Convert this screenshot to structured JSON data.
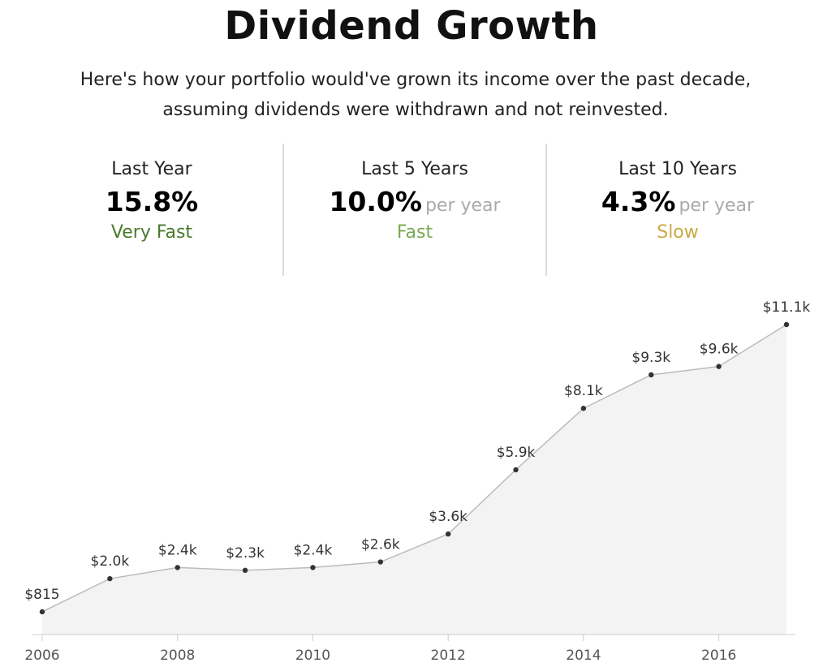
{
  "header": {
    "title": "Dividend Growth",
    "subtitle_line1": "Here's how your portfolio would've grown its income over the past decade,",
    "subtitle_line2": "assuming dividends were withdrawn and not reinvested."
  },
  "stats": [
    {
      "label": "Last Year",
      "value": "15.8%",
      "unit": "",
      "rating": "Very Fast",
      "rating_color": "#4a7a2c"
    },
    {
      "label": "Last 5 Years",
      "value": "10.0%",
      "unit": "per year",
      "rating": "Fast",
      "rating_color": "#7aa954"
    },
    {
      "label": "Last 10 Years",
      "value": "4.3%",
      "unit": "per year",
      "rating": "Slow",
      "rating_color": "#c9a945"
    }
  ],
  "chart_data": {
    "type": "area",
    "title": "",
    "xlabel": "",
    "ylabel": "",
    "x": [
      2006,
      2007,
      2008,
      2009,
      2010,
      2011,
      2012,
      2013,
      2014,
      2015,
      2016,
      2017
    ],
    "values": [
      815,
      2000,
      2400,
      2300,
      2400,
      2600,
      3600,
      5900,
      8100,
      9300,
      9600,
      11100
    ],
    "data_labels": [
      "$815",
      "$2.0k",
      "$2.4k",
      "$2.3k",
      "$2.4k",
      "$2.6k",
      "$3.6k",
      "$5.9k",
      "$8.1k",
      "$9.3k",
      "$9.6k",
      "$11.1k"
    ],
    "x_ticks": [
      2006,
      2008,
      2010,
      2012,
      2014,
      2016
    ],
    "x_tick_labels": [
      "2006",
      "2008",
      "2010",
      "2012",
      "2014",
      "2016"
    ],
    "xlim": [
      2006,
      2017
    ],
    "ylim": [
      0,
      11100
    ],
    "grid": false,
    "colors": {
      "fill": "#f3f3f3",
      "line": "#bbbbbb",
      "point": "#333333",
      "label": "#333333",
      "axis": "#cccccc"
    }
  }
}
